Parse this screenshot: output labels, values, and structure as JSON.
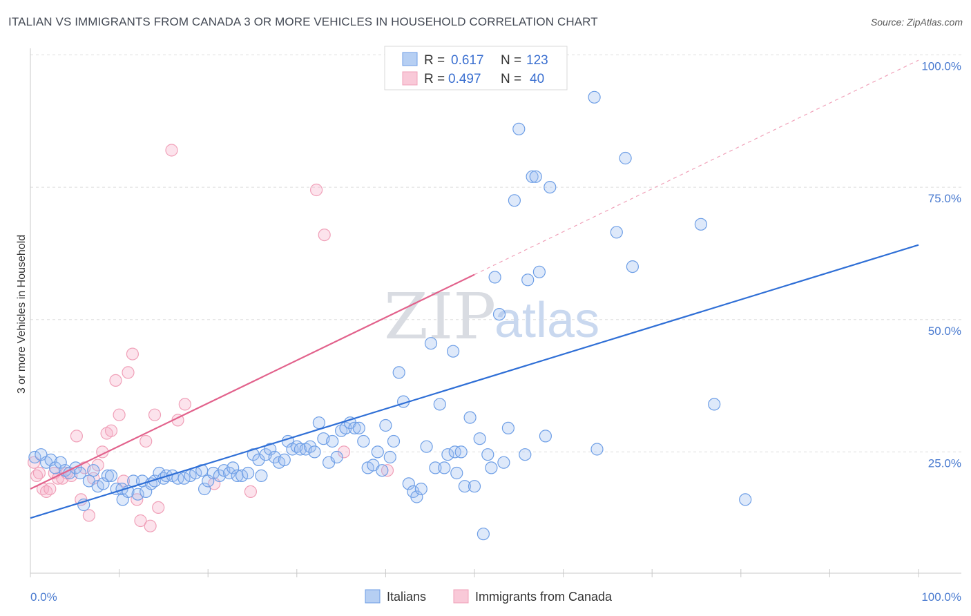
{
  "title": "ITALIAN VS IMMIGRANTS FROM CANADA 3 OR MORE VEHICLES IN HOUSEHOLD CORRELATION CHART",
  "source": "Source: ZipAtlas.com",
  "watermark": {
    "part1": "ZIP",
    "part2": "atlas"
  },
  "legend": {
    "rows": [
      {
        "r_label": "R =",
        "r_value": "0.617",
        "n_label": "N =",
        "n_value": "123"
      },
      {
        "r_label": "R =",
        "r_value": "0.497",
        "n_label": "N =",
        "n_value": "40"
      }
    ]
  },
  "bottom_legend": [
    "Italians",
    "Immigrants from Canada"
  ],
  "chart_data": {
    "type": "scatter",
    "title": "ITALIAN VS IMMIGRANTS FROM CANADA 3 OR MORE VEHICLES IN HOUSEHOLD CORRELATION CHART",
    "xlabel": "",
    "ylabel": "3 or more Vehicles in Household",
    "xlim": [
      0,
      100
    ],
    "ylim": [
      0,
      102
    ],
    "x_tick_labels": [
      "0.0%",
      "100.0%"
    ],
    "y_ticks": [
      25,
      50,
      75,
      100
    ],
    "y_tick_labels": [
      "25.0%",
      "50.0%",
      "75.0%",
      "100.0%"
    ],
    "grid": "horizontal dashed",
    "legend_position": "top-center",
    "colors": {
      "italians": "#6d9ee6",
      "canada": "#f0a0b8",
      "italians_line": "#2f6fd6",
      "canada_line": "#e2628c"
    },
    "series": [
      {
        "name": "Italians",
        "r": 0.617,
        "n": 123,
        "trend": {
          "x": [
            0,
            100
          ],
          "y": [
            12.5,
            64.1
          ]
        },
        "points": [
          [
            0.5,
            24
          ],
          [
            1.2,
            24.5
          ],
          [
            1.8,
            23
          ],
          [
            2.3,
            23.5
          ],
          [
            2.8,
            22
          ],
          [
            3.4,
            23
          ],
          [
            3.9,
            21.5
          ],
          [
            4.4,
            21
          ],
          [
            5.1,
            22
          ],
          [
            5.6,
            21
          ],
          [
            6,
            15
          ],
          [
            6.6,
            19.5
          ],
          [
            7.1,
            21.5
          ],
          [
            7.6,
            18.5
          ],
          [
            8.2,
            19
          ],
          [
            8.7,
            20.5
          ],
          [
            9.1,
            20.5
          ],
          [
            9.7,
            18
          ],
          [
            10.3,
            18
          ],
          [
            10.4,
            16
          ],
          [
            11,
            17.5
          ],
          [
            11.6,
            19.5
          ],
          [
            12.1,
            17
          ],
          [
            12.6,
            19.5
          ],
          [
            13,
            17.5
          ],
          [
            13.6,
            19
          ],
          [
            14,
            19.5
          ],
          [
            14.5,
            21
          ],
          [
            15,
            20
          ],
          [
            15.3,
            20.5
          ],
          [
            16,
            20.5
          ],
          [
            16.6,
            20
          ],
          [
            17.3,
            20
          ],
          [
            18,
            20.5
          ],
          [
            18.6,
            21
          ],
          [
            19.3,
            21.5
          ],
          [
            19.6,
            18
          ],
          [
            20,
            19.5
          ],
          [
            20.6,
            21
          ],
          [
            21.3,
            20.5
          ],
          [
            21.8,
            21.5
          ],
          [
            22.4,
            21
          ],
          [
            22.8,
            22
          ],
          [
            23.3,
            20.5
          ],
          [
            23.8,
            20.5
          ],
          [
            24.5,
            21
          ],
          [
            25.1,
            24.5
          ],
          [
            25.7,
            23.5
          ],
          [
            26,
            20.5
          ],
          [
            26.5,
            24.5
          ],
          [
            27,
            25.5
          ],
          [
            27.5,
            24
          ],
          [
            28,
            23
          ],
          [
            28.6,
            23.5
          ],
          [
            29,
            27
          ],
          [
            29.5,
            25.5
          ],
          [
            30,
            26
          ],
          [
            30.4,
            25.5
          ],
          [
            31,
            25.5
          ],
          [
            31.5,
            26
          ],
          [
            32,
            25
          ],
          [
            32.5,
            30.5
          ],
          [
            33,
            27.5
          ],
          [
            33.6,
            23
          ],
          [
            34,
            27
          ],
          [
            34.5,
            24
          ],
          [
            35,
            29
          ],
          [
            35.5,
            29.5
          ],
          [
            36,
            30.5
          ],
          [
            36.5,
            29.5
          ],
          [
            37,
            29.5
          ],
          [
            37.5,
            27
          ],
          [
            38,
            22
          ],
          [
            38.6,
            22.5
          ],
          [
            39.1,
            25
          ],
          [
            39.6,
            21.5
          ],
          [
            40,
            30
          ],
          [
            40.5,
            24
          ],
          [
            40.9,
            27
          ],
          [
            41.5,
            40
          ],
          [
            42,
            34.5
          ],
          [
            42.6,
            19
          ],
          [
            43.1,
            17.5
          ],
          [
            43.5,
            16.5
          ],
          [
            44,
            18
          ],
          [
            44.6,
            26
          ],
          [
            45.1,
            45.5
          ],
          [
            45.6,
            22
          ],
          [
            46.1,
            34
          ],
          [
            46.6,
            22
          ],
          [
            47,
            24.5
          ],
          [
            47.6,
            44
          ],
          [
            47.8,
            25
          ],
          [
            48,
            21
          ],
          [
            48.5,
            25
          ],
          [
            48.9,
            18.5
          ],
          [
            49.5,
            31.5
          ],
          [
            50,
            18.5
          ],
          [
            50.6,
            27.5
          ],
          [
            51,
            9.5
          ],
          [
            51.5,
            24.5
          ],
          [
            51.9,
            22
          ],
          [
            52.3,
            58
          ],
          [
            52.8,
            51
          ],
          [
            53.3,
            23
          ],
          [
            53.8,
            29.5
          ],
          [
            54.5,
            72.5
          ],
          [
            55,
            86
          ],
          [
            55.7,
            24.5
          ],
          [
            56,
            57.5
          ],
          [
            56.5,
            77
          ],
          [
            56.9,
            77
          ],
          [
            57.3,
            59
          ],
          [
            58,
            28
          ],
          [
            58.5,
            75
          ],
          [
            63.5,
            92
          ],
          [
            63.8,
            25.5
          ],
          [
            66,
            66.5
          ],
          [
            67,
            80.5
          ],
          [
            67.8,
            60
          ],
          [
            75.5,
            68
          ],
          [
            77,
            34
          ],
          [
            80.5,
            16
          ]
        ]
      },
      {
        "name": "Immigrants from Canada",
        "r": 0.497,
        "n": 40,
        "trend": {
          "x": [
            0,
            50
          ],
          "y": [
            18,
            58.5
          ]
        },
        "points": [
          [
            0.4,
            23
          ],
          [
            0.7,
            20.5
          ],
          [
            1,
            21
          ],
          [
            1.4,
            18
          ],
          [
            1.8,
            17.5
          ],
          [
            2.2,
            18
          ],
          [
            2.7,
            21
          ],
          [
            3.1,
            20
          ],
          [
            3.6,
            20
          ],
          [
            4.1,
            21
          ],
          [
            4.6,
            20.5
          ],
          [
            5.2,
            28
          ],
          [
            5.7,
            16
          ],
          [
            6.1,
            22
          ],
          [
            6.6,
            13
          ],
          [
            7.1,
            20
          ],
          [
            7.6,
            22.5
          ],
          [
            8.1,
            25
          ],
          [
            8.6,
            28.5
          ],
          [
            9.1,
            29
          ],
          [
            9.6,
            38.5
          ],
          [
            10,
            32
          ],
          [
            10.5,
            19.5
          ],
          [
            11,
            40
          ],
          [
            11.5,
            43.5
          ],
          [
            12,
            16
          ],
          [
            12.4,
            12
          ],
          [
            13,
            27
          ],
          [
            13.5,
            11
          ],
          [
            14,
            32
          ],
          [
            14.4,
            14.5
          ],
          [
            15.9,
            82
          ],
          [
            16.6,
            31
          ],
          [
            17.4,
            34
          ],
          [
            20.7,
            19
          ],
          [
            24.8,
            17.5
          ],
          [
            32.2,
            74.5
          ],
          [
            33.1,
            66
          ],
          [
            35.3,
            25
          ],
          [
            40.2,
            21.5
          ]
        ]
      }
    ]
  }
}
